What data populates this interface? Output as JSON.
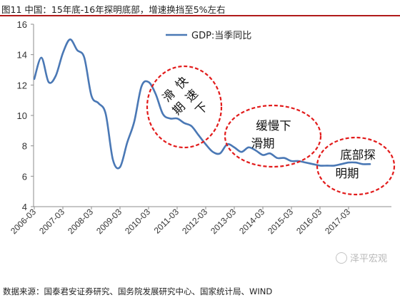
{
  "header": {
    "title": "图11 中国：15年底-16年探明底部，增速换挡至5%左右"
  },
  "footer": {
    "source": "数据来源：国泰君安证券研究、国务院发展研究中心、国家统计局、WIND"
  },
  "watermark": {
    "text": "泽平宏观",
    "icon": "wechat-icon"
  },
  "colors": {
    "line": "#4a78b5",
    "annotation": "#e21b1b",
    "title_rule": "#b01a1a"
  },
  "chart_data": {
    "type": "line",
    "title": "",
    "xlabel": "",
    "ylabel": "",
    "ylim": [
      4,
      16
    ],
    "yticks": [
      4,
      6,
      8,
      10,
      12,
      14,
      16
    ],
    "grid": false,
    "legend_position": "top-right",
    "x_tick_labels": [
      "2006-03",
      "2007-03",
      "2008-03",
      "2009-03",
      "2010-03",
      "2011-03",
      "2012-03",
      "2013-03",
      "2014-03",
      "2015-03",
      "2016-03",
      "2017-03"
    ],
    "series": [
      {
        "name": "GDP:当季同比",
        "x": [
          "2006-03",
          "2006-06",
          "2006-09",
          "2006-12",
          "2007-03",
          "2007-06",
          "2007-09",
          "2007-12",
          "2008-03",
          "2008-06",
          "2008-09",
          "2008-12",
          "2009-03",
          "2009-06",
          "2009-09",
          "2009-12",
          "2010-03",
          "2010-06",
          "2010-09",
          "2010-12",
          "2011-03",
          "2011-06",
          "2011-09",
          "2011-12",
          "2012-03",
          "2012-06",
          "2012-09",
          "2012-12",
          "2013-03",
          "2013-06",
          "2013-09",
          "2013-12",
          "2014-03",
          "2014-06",
          "2014-09",
          "2014-12",
          "2015-03",
          "2015-06",
          "2015-09",
          "2015-12",
          "2016-03",
          "2016-06",
          "2016-09",
          "2016-12",
          "2017-03",
          "2017-06",
          "2017-09",
          "2017-12"
        ],
        "values": [
          12.4,
          13.8,
          12.2,
          12.6,
          14.1,
          15.0,
          14.3,
          13.8,
          11.3,
          10.8,
          10.1,
          7.1,
          6.6,
          8.2,
          9.6,
          11.9,
          12.2,
          11.4,
          10.1,
          9.8,
          9.8,
          9.5,
          9.3,
          8.7,
          8.1,
          7.6,
          7.5,
          8.1,
          7.9,
          7.6,
          7.9,
          7.7,
          7.4,
          7.5,
          7.2,
          7.2,
          7.0,
          7.0,
          6.9,
          6.8,
          6.7,
          6.7,
          6.7,
          6.8,
          6.9,
          6.9,
          6.8,
          6.8
        ]
      }
    ],
    "annotations": [
      {
        "lines": [
          "快速下",
          "滑期"
        ],
        "vertical": true
      },
      {
        "lines": [
          "缓慢下",
          "滑期"
        ]
      },
      {
        "lines": [
          "底部探",
          "明期"
        ]
      }
    ]
  }
}
